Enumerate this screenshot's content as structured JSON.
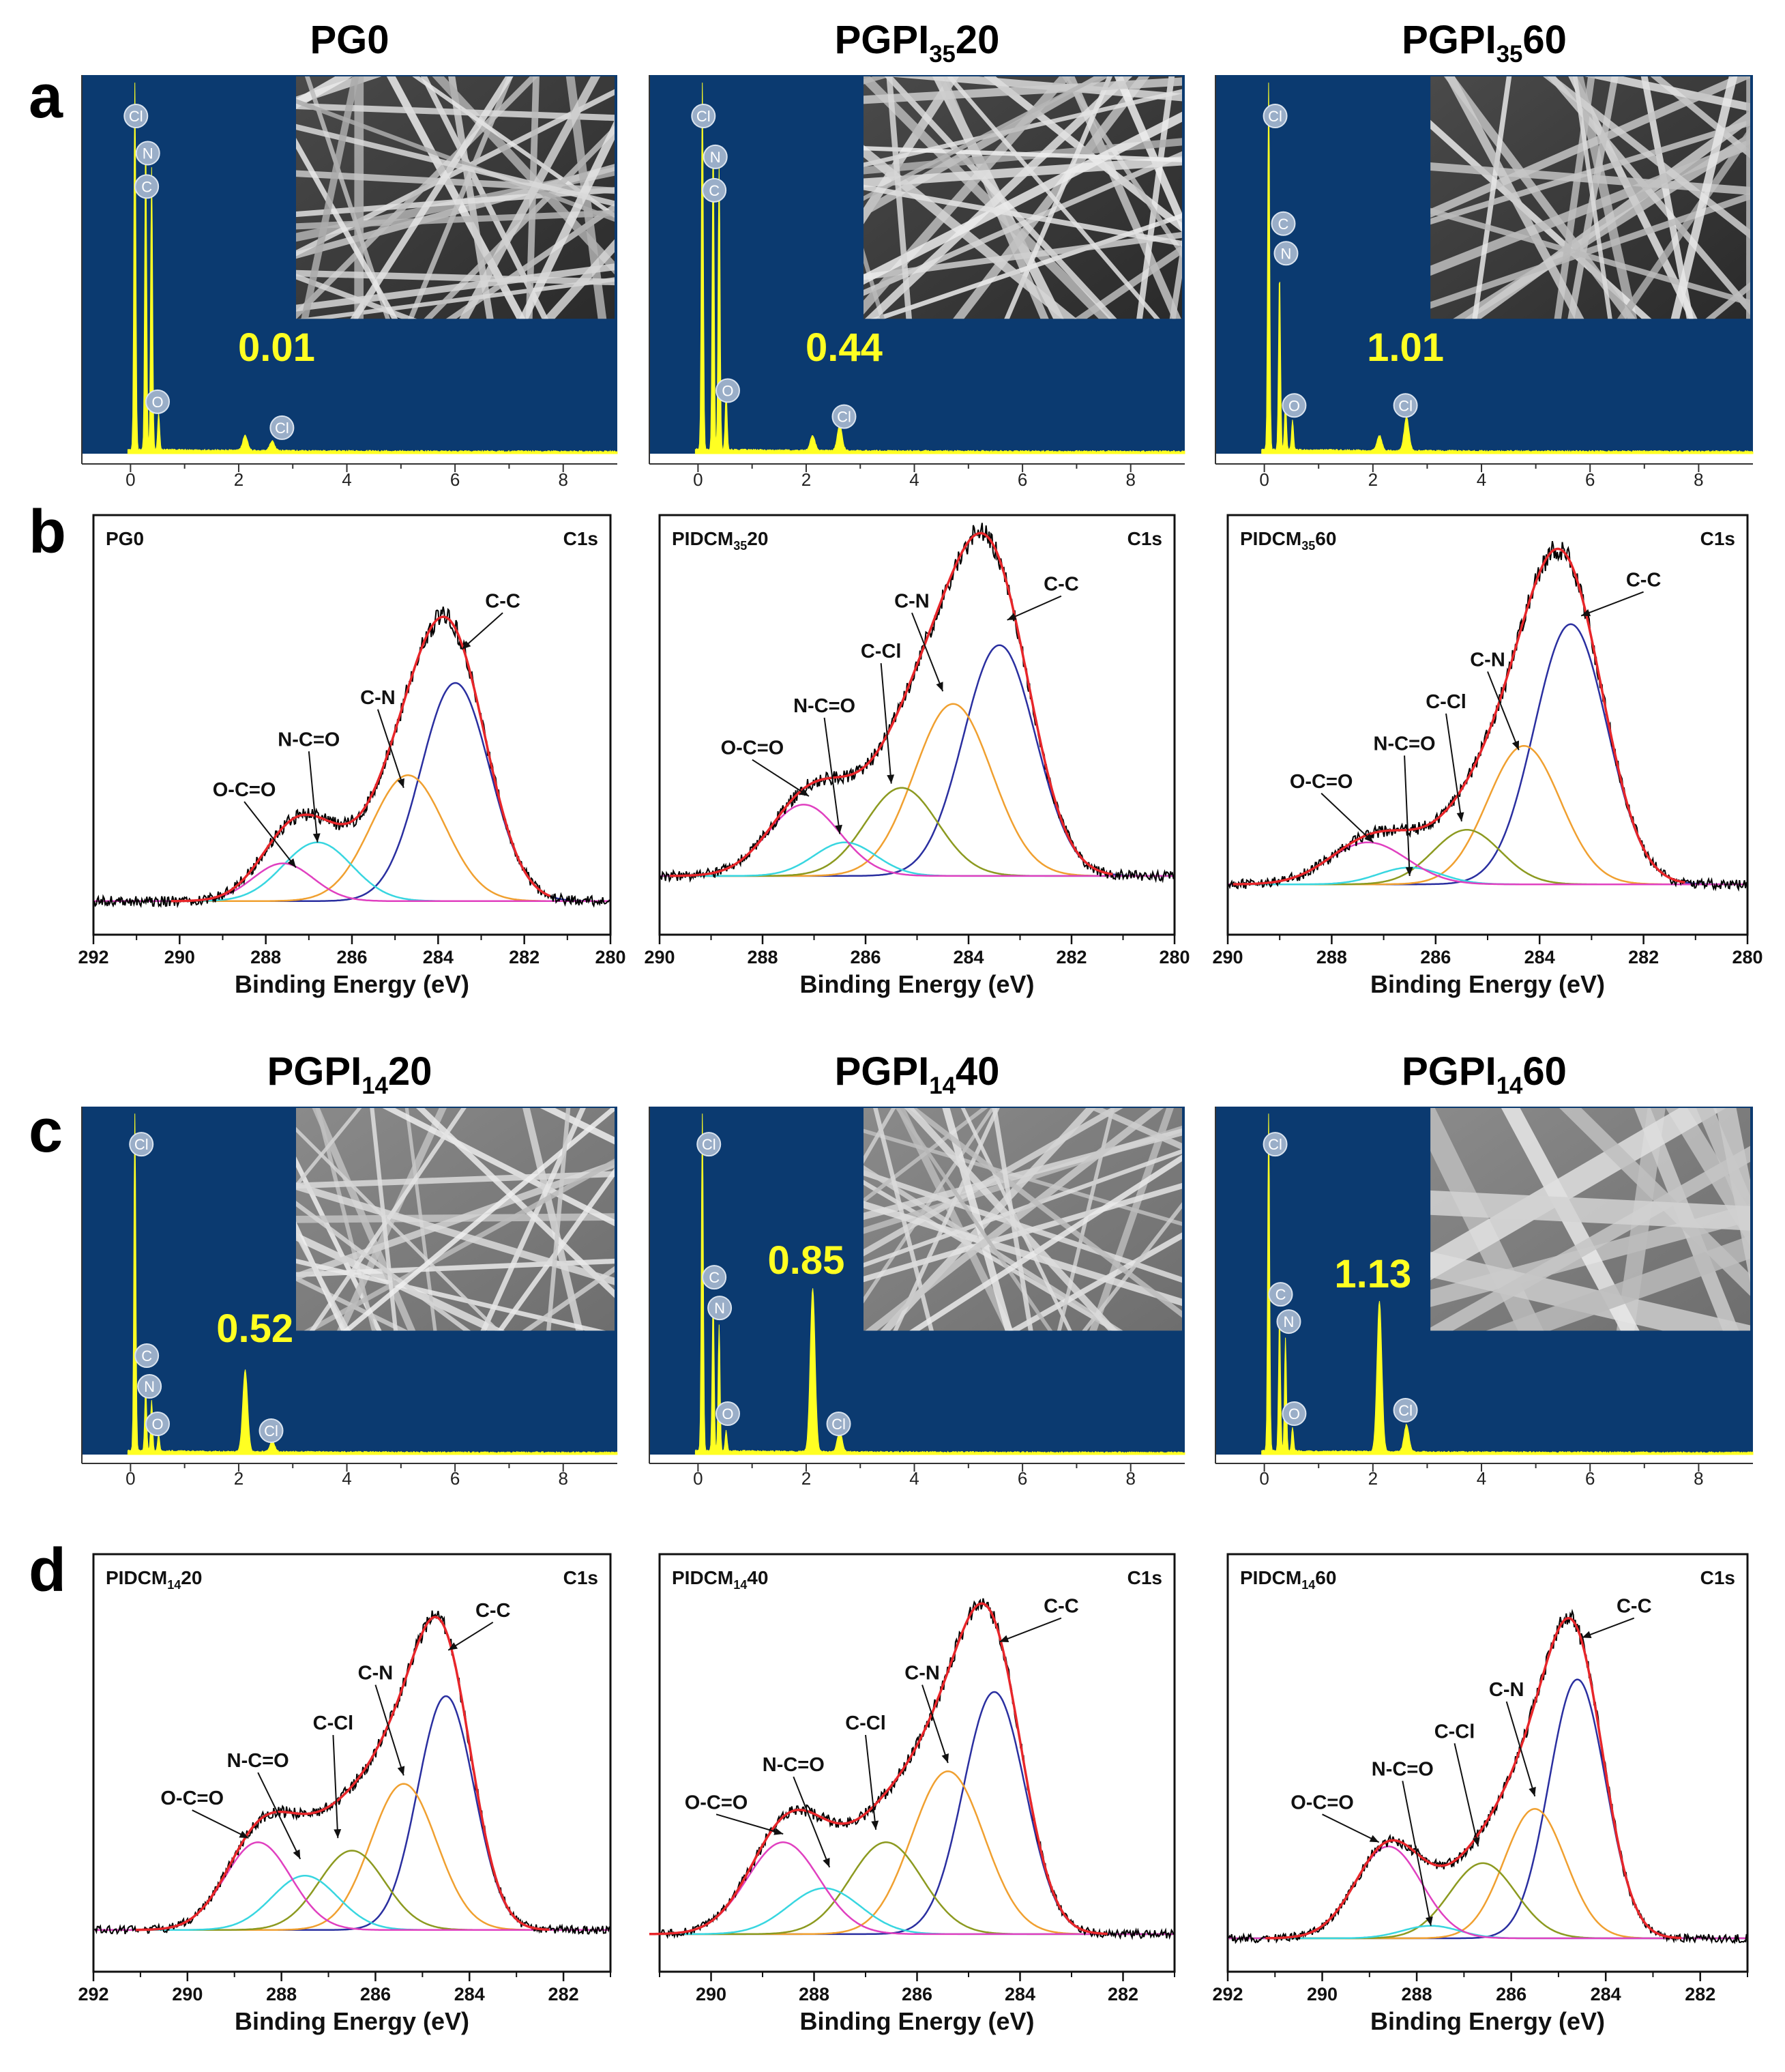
{
  "figure": {
    "panel_letters": [
      "a",
      "b",
      "c",
      "d"
    ]
  },
  "colors": {
    "eds_background": "#0b3a70",
    "eds_spectrum": "#ffff22",
    "eds_value": "#ffff22",
    "element_badge": "#9aaec8",
    "raw_trace": "#000000",
    "fit_envelope": "#e8262a",
    "peak_CC": "#2a2fa0",
    "peak_CN": "#f0a030",
    "peak_CCl": "#8c9a20",
    "peak_NCO": "#38d6e0",
    "peak_OCO": "#e040c0"
  },
  "chart_data": [
    {
      "id": "eds1",
      "type": "area",
      "panel": "a",
      "title": "PG0",
      "title_base": "PG0",
      "title_sub": "",
      "title_rest": "",
      "x_ticks": [
        "0",
        "2",
        "4",
        "6",
        "8"
      ],
      "xlim": [
        -0.9,
        9.0
      ],
      "peaks": [
        {
          "x": 0.08,
          "h": 1.0
        },
        {
          "x": 0.28,
          "h": 0.83
        },
        {
          "x": 0.39,
          "h": 0.76
        },
        {
          "x": 0.52,
          "h": 0.1
        },
        {
          "x": 2.12,
          "h": 0.04
        },
        {
          "x": 2.62,
          "h": 0.025
        }
      ],
      "elements": [
        {
          "name": "Cl",
          "x": 0.1,
          "y": 0.91
        },
        {
          "name": "N",
          "x": 0.32,
          "y": 0.81
        },
        {
          "name": "C",
          "x": 0.3,
          "y": 0.72
        },
        {
          "name": "O",
          "x": 0.5,
          "y": 0.14
        },
        {
          "name": "Cl",
          "x": 2.8,
          "y": 0.07
        }
      ],
      "value": "0.01",
      "value_pos": [
        2.7,
        0.25
      ],
      "inset_pattern": "dense"
    },
    {
      "id": "eds2",
      "type": "area",
      "panel": "a",
      "title": "PGPI3520",
      "title_base": "PGPI",
      "title_sub": "35",
      "title_rest": "20",
      "x_ticks": [
        "0",
        "2",
        "4",
        "6",
        "8"
      ],
      "xlim": [
        -0.9,
        9.0
      ],
      "peaks": [
        {
          "x": 0.08,
          "h": 1.0
        },
        {
          "x": 0.28,
          "h": 0.84
        },
        {
          "x": 0.39,
          "h": 0.77
        },
        {
          "x": 0.52,
          "h": 0.16
        },
        {
          "x": 2.12,
          "h": 0.04
        },
        {
          "x": 2.62,
          "h": 0.07
        }
      ],
      "elements": [
        {
          "name": "Cl",
          "x": 0.1,
          "y": 0.91
        },
        {
          "name": "N",
          "x": 0.32,
          "y": 0.8
        },
        {
          "name": "C",
          "x": 0.3,
          "y": 0.71
        },
        {
          "name": "O",
          "x": 0.55,
          "y": 0.17
        },
        {
          "name": "Cl",
          "x": 2.7,
          "y": 0.1
        }
      ],
      "value": "0.44",
      "value_pos": [
        2.7,
        0.25
      ],
      "inset_pattern": "dense"
    },
    {
      "id": "eds3",
      "type": "area",
      "panel": "a",
      "title": "PGPI3560",
      "title_base": "PGPI",
      "title_sub": "35",
      "title_rest": "60",
      "x_ticks": [
        "0",
        "2",
        "4",
        "6",
        "8"
      ],
      "xlim": [
        -0.9,
        9.0
      ],
      "peaks": [
        {
          "x": 0.08,
          "h": 1.0
        },
        {
          "x": 0.28,
          "h": 0.48
        },
        {
          "x": 0.39,
          "h": 0.13
        },
        {
          "x": 0.52,
          "h": 0.08
        },
        {
          "x": 2.12,
          "h": 0.04
        },
        {
          "x": 2.62,
          "h": 0.09
        }
      ],
      "elements": [
        {
          "name": "Cl",
          "x": 0.2,
          "y": 0.91
        },
        {
          "name": "C",
          "x": 0.35,
          "y": 0.62
        },
        {
          "name": "N",
          "x": 0.4,
          "y": 0.54
        },
        {
          "name": "O",
          "x": 0.55,
          "y": 0.13
        },
        {
          "name": "Cl",
          "x": 2.6,
          "y": 0.13
        }
      ],
      "value": "1.01",
      "value_pos": [
        2.6,
        0.25
      ],
      "inset_pattern": "sparse"
    },
    {
      "id": "xps1",
      "type": "line",
      "panel": "b",
      "title": "PG0",
      "label_base": "PG0",
      "label_sub": "",
      "label_rest": "",
      "corner_label": "C1s",
      "x_ticks": [
        292,
        290,
        288,
        286,
        284,
        282,
        280
      ],
      "xlim": [
        292,
        280
      ],
      "ylim": [
        0,
        1.0
      ],
      "xlabel": "Binding Energy (eV)",
      "baseline": 0.08,
      "noise": 0.012,
      "components": [
        {
          "name": "C-C",
          "center": 283.6,
          "amp": 0.52,
          "sigma": 0.8
        },
        {
          "name": "C-N",
          "center": 284.7,
          "amp": 0.3,
          "sigma": 0.85
        },
        {
          "name": "N-C=O",
          "center": 286.8,
          "amp": 0.14,
          "sigma": 0.8
        },
        {
          "name": "O-C=O",
          "center": 287.6,
          "amp": 0.09,
          "sigma": 0.7
        }
      ],
      "annotations": [
        {
          "text": "C-C",
          "tx": 282.5,
          "ty": 0.78,
          "ax": 283.45,
          "ay": 0.68
        },
        {
          "text": "C-N",
          "tx": 285.4,
          "ty": 0.55,
          "ax": 284.8,
          "ay": 0.35
        },
        {
          "text": "N-C=O",
          "tx": 287.0,
          "ty": 0.45,
          "ax": 286.8,
          "ay": 0.22
        },
        {
          "text": "O-C=O",
          "tx": 288.5,
          "ty": 0.33,
          "ax": 287.3,
          "ay": 0.16
        }
      ]
    },
    {
      "id": "xps2",
      "type": "line",
      "panel": "b",
      "title": "PIDCM3520",
      "label_base": "PIDCM",
      "label_sub": "35",
      "label_rest": "20",
      "corner_label": "C1s",
      "x_ticks": [
        290,
        288,
        286,
        284,
        282,
        280
      ],
      "xlim": [
        290,
        280
      ],
      "ylim": [
        0,
        1.0
      ],
      "xlabel": "Binding Energy (eV)",
      "baseline": 0.14,
      "noise": 0.012,
      "components": [
        {
          "name": "C-C",
          "center": 283.4,
          "amp": 0.55,
          "sigma": 0.7
        },
        {
          "name": "C-N",
          "center": 284.3,
          "amp": 0.41,
          "sigma": 0.75
        },
        {
          "name": "C-Cl",
          "center": 285.3,
          "amp": 0.21,
          "sigma": 0.7
        },
        {
          "name": "N-C=O",
          "center": 286.4,
          "amp": 0.08,
          "sigma": 0.6
        },
        {
          "name": "O-C=O",
          "center": 287.2,
          "amp": 0.17,
          "sigma": 0.7
        }
      ],
      "annotations": [
        {
          "text": "C-C",
          "tx": 282.2,
          "ty": 0.82,
          "ax": 283.25,
          "ay": 0.75
        },
        {
          "text": "C-N",
          "tx": 285.1,
          "ty": 0.78,
          "ax": 284.5,
          "ay": 0.58
        },
        {
          "text": "C-Cl",
          "tx": 285.7,
          "ty": 0.66,
          "ax": 285.5,
          "ay": 0.36
        },
        {
          "text": "N-C=O",
          "tx": 286.8,
          "ty": 0.53,
          "ax": 286.5,
          "ay": 0.24
        },
        {
          "text": "O-C=O",
          "tx": 288.2,
          "ty": 0.43,
          "ax": 287.1,
          "ay": 0.33
        }
      ]
    },
    {
      "id": "xps3",
      "type": "line",
      "panel": "b",
      "title": "PIDCM3560",
      "label_base": "PIDCM",
      "label_sub": "35",
      "label_rest": "60",
      "corner_label": "C1s",
      "x_ticks": [
        290,
        288,
        286,
        284,
        282,
        280
      ],
      "xlim": [
        290,
        280
      ],
      "ylim": [
        0,
        1.0
      ],
      "xlabel": "Binding Energy (eV)",
      "baseline": 0.12,
      "noise": 0.012,
      "components": [
        {
          "name": "C-C",
          "center": 283.4,
          "amp": 0.62,
          "sigma": 0.7
        },
        {
          "name": "C-N",
          "center": 284.3,
          "amp": 0.33,
          "sigma": 0.7
        },
        {
          "name": "C-Cl",
          "center": 285.4,
          "amp": 0.13,
          "sigma": 0.65
        },
        {
          "name": "N-C=O",
          "center": 286.5,
          "amp": 0.04,
          "sigma": 0.6
        },
        {
          "name": "O-C=O",
          "center": 287.3,
          "amp": 0.1,
          "sigma": 0.75
        }
      ],
      "annotations": [
        {
          "text": "C-C",
          "tx": 282.0,
          "ty": 0.83,
          "ax": 283.2,
          "ay": 0.76
        },
        {
          "text": "C-N",
          "tx": 285.0,
          "ty": 0.64,
          "ax": 284.4,
          "ay": 0.44
        },
        {
          "text": "C-Cl",
          "tx": 285.8,
          "ty": 0.54,
          "ax": 285.5,
          "ay": 0.27
        },
        {
          "text": "N-C=O",
          "tx": 286.6,
          "ty": 0.44,
          "ax": 286.5,
          "ay": 0.14
        },
        {
          "text": "O-C=O",
          "tx": 288.2,
          "ty": 0.35,
          "ax": 287.2,
          "ay": 0.22
        }
      ]
    },
    {
      "id": "eds4",
      "type": "area",
      "panel": "c",
      "title": "PGPI1420",
      "title_base": "PGPI",
      "title_sub": "14",
      "title_rest": "20",
      "x_ticks": [
        "0",
        "2",
        "4",
        "6",
        "8"
      ],
      "xlim": [
        -0.9,
        9.0
      ],
      "peaks": [
        {
          "x": 0.08,
          "h": 1.0
        },
        {
          "x": 0.28,
          "h": 0.19
        },
        {
          "x": 0.39,
          "h": 0.15
        },
        {
          "x": 0.52,
          "h": 0.05
        },
        {
          "x": 2.12,
          "h": 0.24
        },
        {
          "x": 2.62,
          "h": 0.03
        }
      ],
      "elements": [
        {
          "name": "Cl",
          "x": 0.2,
          "y": 0.91
        },
        {
          "name": "C",
          "x": 0.3,
          "y": 0.29
        },
        {
          "name": "N",
          "x": 0.35,
          "y": 0.2
        },
        {
          "name": "O",
          "x": 0.5,
          "y": 0.09
        },
        {
          "name": "Cl",
          "x": 2.6,
          "y": 0.07
        }
      ],
      "value": "0.52",
      "value_pos": [
        2.3,
        0.33
      ],
      "inset_pattern": "fine"
    },
    {
      "id": "eds5",
      "type": "area",
      "panel": "c",
      "title": "PGPI1440",
      "title_base": "PGPI",
      "title_sub": "14",
      "title_rest": "40",
      "x_ticks": [
        "0",
        "2",
        "4",
        "6",
        "8"
      ],
      "xlim": [
        -0.9,
        9.0
      ],
      "peaks": [
        {
          "x": 0.08,
          "h": 1.0
        },
        {
          "x": 0.28,
          "h": 0.46
        },
        {
          "x": 0.39,
          "h": 0.37
        },
        {
          "x": 0.52,
          "h": 0.06
        },
        {
          "x": 2.12,
          "h": 0.48
        },
        {
          "x": 2.62,
          "h": 0.06
        }
      ],
      "elements": [
        {
          "name": "Cl",
          "x": 0.2,
          "y": 0.91
        },
        {
          "name": "C",
          "x": 0.3,
          "y": 0.52
        },
        {
          "name": "N",
          "x": 0.4,
          "y": 0.43
        },
        {
          "name": "O",
          "x": 0.55,
          "y": 0.12
        },
        {
          "name": "Cl",
          "x": 2.6,
          "y": 0.09
        }
      ],
      "value": "0.85",
      "value_pos": [
        2.0,
        0.53
      ],
      "inset_pattern": "fine"
    },
    {
      "id": "eds6",
      "type": "area",
      "panel": "c",
      "title": "PGPI1460",
      "title_base": "PGPI",
      "title_sub": "14",
      "title_rest": "60",
      "x_ticks": [
        "0",
        "2",
        "4",
        "6",
        "8"
      ],
      "xlim": [
        -0.9,
        9.0
      ],
      "peaks": [
        {
          "x": 0.08,
          "h": 1.0
        },
        {
          "x": 0.28,
          "h": 0.4
        },
        {
          "x": 0.39,
          "h": 0.33
        },
        {
          "x": 0.52,
          "h": 0.07
        },
        {
          "x": 2.12,
          "h": 0.44
        },
        {
          "x": 2.62,
          "h": 0.08
        }
      ],
      "elements": [
        {
          "name": "Cl",
          "x": 0.2,
          "y": 0.91
        },
        {
          "name": "C",
          "x": 0.3,
          "y": 0.47
        },
        {
          "name": "N",
          "x": 0.45,
          "y": 0.39
        },
        {
          "name": "O",
          "x": 0.55,
          "y": 0.12
        },
        {
          "name": "Cl",
          "x": 2.6,
          "y": 0.13
        }
      ],
      "value": "1.13",
      "value_pos": [
        2.0,
        0.49
      ],
      "inset_pattern": "coarse"
    },
    {
      "id": "xps4",
      "type": "line",
      "panel": "d",
      "title": "PIDCM1420",
      "label_base": "PIDCM",
      "label_sub": "14",
      "label_rest": "20",
      "corner_label": "C1s",
      "x_ticks": [
        292,
        290,
        288,
        286,
        284,
        282
      ],
      "xlim": [
        292,
        281
      ],
      "ylim": [
        0,
        1.0
      ],
      "xlabel": "Binding Energy (eV)",
      "baseline": 0.1,
      "noise": 0.01,
      "components": [
        {
          "name": "C-C",
          "center": 284.5,
          "amp": 0.56,
          "sigma": 0.6
        },
        {
          "name": "C-N",
          "center": 285.4,
          "amp": 0.35,
          "sigma": 0.7
        },
        {
          "name": "C-Cl",
          "center": 286.5,
          "amp": 0.19,
          "sigma": 0.7
        },
        {
          "name": "N-C=O",
          "center": 287.5,
          "amp": 0.13,
          "sigma": 0.7
        },
        {
          "name": "O-C=O",
          "center": 288.5,
          "amp": 0.21,
          "sigma": 0.7
        }
      ],
      "annotations": [
        {
          "text": "C-C",
          "tx": 283.5,
          "ty": 0.85,
          "ax": 284.45,
          "ay": 0.77
        },
        {
          "text": "C-N",
          "tx": 286.0,
          "ty": 0.7,
          "ax": 285.4,
          "ay": 0.47
        },
        {
          "text": "C-Cl",
          "tx": 286.9,
          "ty": 0.58,
          "ax": 286.8,
          "ay": 0.32
        },
        {
          "text": "N-C=O",
          "tx": 288.5,
          "ty": 0.49,
          "ax": 287.6,
          "ay": 0.27
        },
        {
          "text": "O-C=O",
          "tx": 289.9,
          "ty": 0.4,
          "ax": 288.7,
          "ay": 0.32
        }
      ]
    },
    {
      "id": "xps5",
      "type": "line",
      "panel": "d",
      "title": "PIDCM1440",
      "label_base": "PIDCM",
      "label_sub": "14",
      "label_rest": "40",
      "corner_label": "C1s",
      "x_ticks": [
        290,
        288,
        286,
        284,
        282
      ],
      "xlim": [
        291,
        281
      ],
      "ylim": [
        0,
        1.0
      ],
      "xlabel": "Binding Energy (eV)",
      "baseline": 0.09,
      "noise": 0.01,
      "components": [
        {
          "name": "C-C",
          "center": 284.5,
          "amp": 0.58,
          "sigma": 0.6
        },
        {
          "name": "C-N",
          "center": 285.4,
          "amp": 0.39,
          "sigma": 0.7
        },
        {
          "name": "C-Cl",
          "center": 286.6,
          "amp": 0.22,
          "sigma": 0.7
        },
        {
          "name": "N-C=O",
          "center": 287.8,
          "amp": 0.11,
          "sigma": 0.7
        },
        {
          "name": "O-C=O",
          "center": 288.6,
          "amp": 0.22,
          "sigma": 0.7
        }
      ],
      "annotations": [
        {
          "text": "C-C",
          "tx": 283.2,
          "ty": 0.86,
          "ax": 284.4,
          "ay": 0.79
        },
        {
          "text": "C-N",
          "tx": 285.9,
          "ty": 0.7,
          "ax": 285.4,
          "ay": 0.5
        },
        {
          "text": "C-Cl",
          "tx": 287.0,
          "ty": 0.58,
          "ax": 286.8,
          "ay": 0.34
        },
        {
          "text": "N-C=O",
          "tx": 288.4,
          "ty": 0.48,
          "ax": 287.7,
          "ay": 0.25
        },
        {
          "text": "O-C=O",
          "tx": 289.9,
          "ty": 0.39,
          "ax": 288.6,
          "ay": 0.33
        }
      ]
    },
    {
      "id": "xps6",
      "type": "line",
      "panel": "d",
      "title": "PIDCM1460",
      "label_base": "PIDCM",
      "label_sub": "14",
      "label_rest": "60",
      "corner_label": "C1s",
      "x_ticks": [
        292,
        290,
        288,
        286,
        284,
        282
      ],
      "xlim": [
        292,
        281
      ],
      "ylim": [
        0,
        1.0
      ],
      "xlabel": "Binding Energy (eV)",
      "baseline": 0.08,
      "noise": 0.01,
      "components": [
        {
          "name": "C-C",
          "center": 284.6,
          "amp": 0.62,
          "sigma": 0.6
        },
        {
          "name": "C-N",
          "center": 285.5,
          "amp": 0.31,
          "sigma": 0.65
        },
        {
          "name": "C-Cl",
          "center": 286.6,
          "amp": 0.18,
          "sigma": 0.7
        },
        {
          "name": "N-C=O",
          "center": 287.7,
          "amp": 0.03,
          "sigma": 0.6
        },
        {
          "name": "O-C=O",
          "center": 288.6,
          "amp": 0.22,
          "sigma": 0.7
        }
      ],
      "annotations": [
        {
          "text": "C-C",
          "tx": 283.4,
          "ty": 0.86,
          "ax": 284.5,
          "ay": 0.8
        },
        {
          "text": "C-N",
          "tx": 286.1,
          "ty": 0.66,
          "ax": 285.5,
          "ay": 0.42
        },
        {
          "text": "C-Cl",
          "tx": 287.2,
          "ty": 0.56,
          "ax": 286.7,
          "ay": 0.3
        },
        {
          "text": "N-C=O",
          "tx": 288.3,
          "ty": 0.47,
          "ax": 287.7,
          "ay": 0.11
        },
        {
          "text": "O-C=O",
          "tx": 290.0,
          "ty": 0.39,
          "ax": 288.8,
          "ay": 0.31
        }
      ]
    }
  ]
}
